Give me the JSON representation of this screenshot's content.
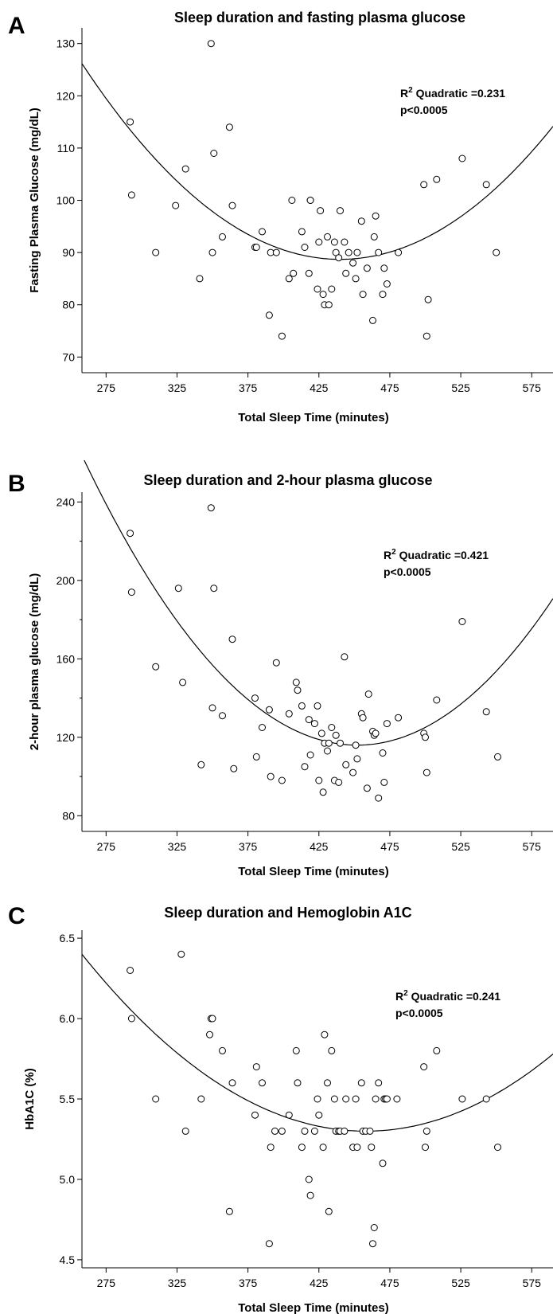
{
  "chart_data": [
    {
      "type": "scatter",
      "panel": "A",
      "title": "Sleep duration and fasting plasma glucose",
      "xlabel": "Total Sleep Time (minutes)",
      "ylabel": "Fasting Plasma Glucose (mg/dL)",
      "xlim": [
        258,
        590
      ],
      "ylim": [
        67,
        133
      ],
      "xticks": [
        275,
        325,
        375,
        425,
        475,
        525,
        575
      ],
      "yticks": [
        70,
        80,
        90,
        100,
        110,
        120,
        130
      ],
      "annotation": {
        "r2_label": "R",
        "r2_sup": "2",
        "r2_text": " Quadratic =0.231",
        "p_text": "p<0.0005"
      },
      "fit": {
        "vertex_x": 440,
        "vertex_y": 88.7,
        "k": 0.001131
      },
      "series": [
        {
          "x": [
            292,
            293,
            310,
            324,
            331,
            341,
            349,
            350,
            351,
            357,
            362,
            364,
            380,
            381,
            385,
            390,
            391,
            395,
            399,
            404,
            406,
            407,
            413,
            415,
            418,
            419,
            419,
            424,
            425,
            426,
            428,
            429,
            431,
            432,
            434,
            436,
            437,
            439,
            440,
            443,
            444,
            446,
            449,
            451,
            452,
            455,
            456,
            459,
            463,
            464,
            465,
            467,
            470,
            471,
            473,
            481,
            499,
            501,
            502,
            508,
            526,
            543,
            550
          ],
          "y": [
            115,
            101,
            90,
            99,
            106,
            85,
            130,
            90,
            109,
            93,
            114,
            99,
            91,
            91,
            94,
            78,
            90,
            90,
            74,
            85,
            100,
            86,
            94,
            91,
            86,
            100,
            100,
            83,
            92,
            98,
            82,
            80,
            93,
            80,
            83,
            92,
            90,
            89,
            98,
            92,
            86,
            90,
            88,
            85,
            90,
            96,
            82,
            87,
            77,
            93,
            97,
            90,
            82,
            87,
            84,
            90,
            103,
            74,
            81,
            104,
            108,
            103,
            90
          ]
        }
      ]
    },
    {
      "type": "scatter",
      "panel": "B",
      "title": "Sleep duration and 2-hour plasma glucose",
      "xlabel": "Total Sleep Time (minutes)",
      "ylabel": "2-hour plasma glucose (mg/dL)",
      "xlim": [
        258,
        590
      ],
      "ylim": [
        72,
        245
      ],
      "xticks": [
        275,
        325,
        375,
        425,
        475,
        525,
        575
      ],
      "yticks": [
        80,
        120,
        160,
        200,
        240
      ],
      "annotation": {
        "r2_label": "R",
        "r2_sup": "2",
        "r2_text": " Quadratic =0.421",
        "p_text": "p<0.0005"
      },
      "fit": {
        "vertex_x": 452,
        "vertex_y": 116,
        "k": 0.003924
      },
      "series": [
        {
          "x": [
            292,
            293,
            310,
            326,
            329,
            342,
            349,
            350,
            351,
            357,
            364,
            365,
            380,
            381,
            385,
            390,
            391,
            395,
            399,
            404,
            409,
            410,
            413,
            415,
            418,
            419,
            422,
            424,
            425,
            427,
            428,
            429,
            431,
            432,
            434,
            436,
            437,
            439,
            440,
            443,
            444,
            449,
            451,
            452,
            455,
            456,
            459,
            460,
            463,
            464,
            465,
            467,
            470,
            471,
            473,
            481,
            499,
            500,
            501,
            508,
            526,
            543,
            551
          ],
          "y": [
            224,
            194,
            156,
            196,
            148,
            106,
            237,
            135,
            196,
            131,
            170,
            104,
            140,
            110,
            125,
            134,
            100,
            158,
            98,
            132,
            148,
            144,
            136,
            105,
            129,
            111,
            127,
            136,
            98,
            122,
            92,
            117,
            113,
            117,
            125,
            98,
            121,
            97,
            117,
            161,
            106,
            102,
            116,
            109,
            132,
            130,
            94,
            142,
            123,
            121,
            122,
            89,
            112,
            97,
            127,
            130,
            122,
            120,
            102,
            139,
            179,
            133,
            110
          ]
        }
      ]
    },
    {
      "type": "scatter",
      "panel": "C",
      "title": "Sleep duration and Hemoglobin A1C",
      "xlabel": "Total Sleep Time (minutes)",
      "ylabel": "HbA1C (%)",
      "xlim": [
        258,
        590
      ],
      "ylim": [
        4.45,
        6.55
      ],
      "xticks": [
        275,
        325,
        375,
        425,
        475,
        525,
        575
      ],
      "yticks": [
        4.5,
        5.0,
        5.5,
        6.0,
        6.5
      ],
      "annotation": {
        "r2_label": "R",
        "r2_sup": "2",
        "r2_text": " Quadratic =0.241",
        "p_text": "p<0.0005"
      },
      "fit": {
        "vertex_x": 458,
        "vertex_y": 5.3,
        "k": 2.75e-05
      },
      "series": [
        {
          "x": [
            292,
            293,
            310,
            328,
            331,
            342,
            348,
            349,
            350,
            357,
            362,
            364,
            380,
            381,
            385,
            390,
            391,
            394,
            399,
            404,
            409,
            410,
            413,
            415,
            418,
            419,
            422,
            424,
            425,
            428,
            429,
            431,
            432,
            434,
            436,
            437,
            439,
            440,
            443,
            444,
            449,
            451,
            452,
            455,
            456,
            458,
            461,
            462,
            463,
            464,
            465,
            467,
            470,
            471,
            472,
            473,
            480,
            499,
            500,
            501,
            508,
            526,
            543,
            551
          ],
          "y": [
            6.3,
            6.0,
            5.5,
            6.4,
            5.3,
            5.5,
            5.9,
            6.0,
            6.0,
            5.8,
            4.8,
            5.6,
            5.4,
            5.7,
            5.6,
            4.6,
            5.2,
            5.3,
            5.3,
            5.4,
            5.8,
            5.6,
            5.2,
            5.3,
            5.0,
            4.9,
            5.3,
            5.5,
            5.4,
            5.2,
            5.9,
            5.6,
            4.8,
            5.8,
            5.5,
            5.3,
            5.3,
            5.3,
            5.3,
            5.5,
            5.2,
            5.5,
            5.2,
            5.6,
            5.3,
            5.3,
            5.3,
            5.2,
            4.6,
            4.7,
            5.5,
            5.6,
            5.1,
            5.5,
            5.5,
            5.5,
            5.5,
            5.7,
            5.2,
            5.3,
            5.8,
            5.5,
            5.5,
            5.2
          ]
        }
      ]
    }
  ]
}
